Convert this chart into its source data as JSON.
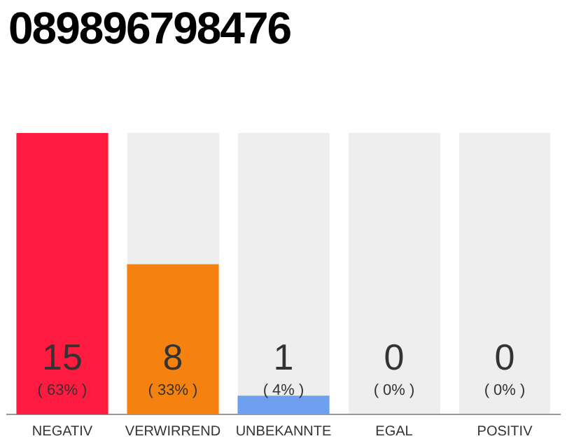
{
  "chart_data": {
    "type": "bar",
    "title": "089896798476",
    "categories": [
      "NEGATIV",
      "VERWIRREND",
      "UNBEKANNTE",
      "EGAL",
      "POSITIV"
    ],
    "values": [
      15,
      8,
      1,
      0,
      0
    ],
    "colors": [
      "#ff1a40",
      "#f5820f",
      "#6fa0f0",
      "#aaaaaa",
      "#aaaaaa"
    ],
    "value_labels": [
      "15\n( 63% )",
      "8\n( 33% )",
      "1\n( 4% )",
      "0\n( 0% )",
      "0\n( 0% )"
    ],
    "grid": false,
    "legend": false
  }
}
